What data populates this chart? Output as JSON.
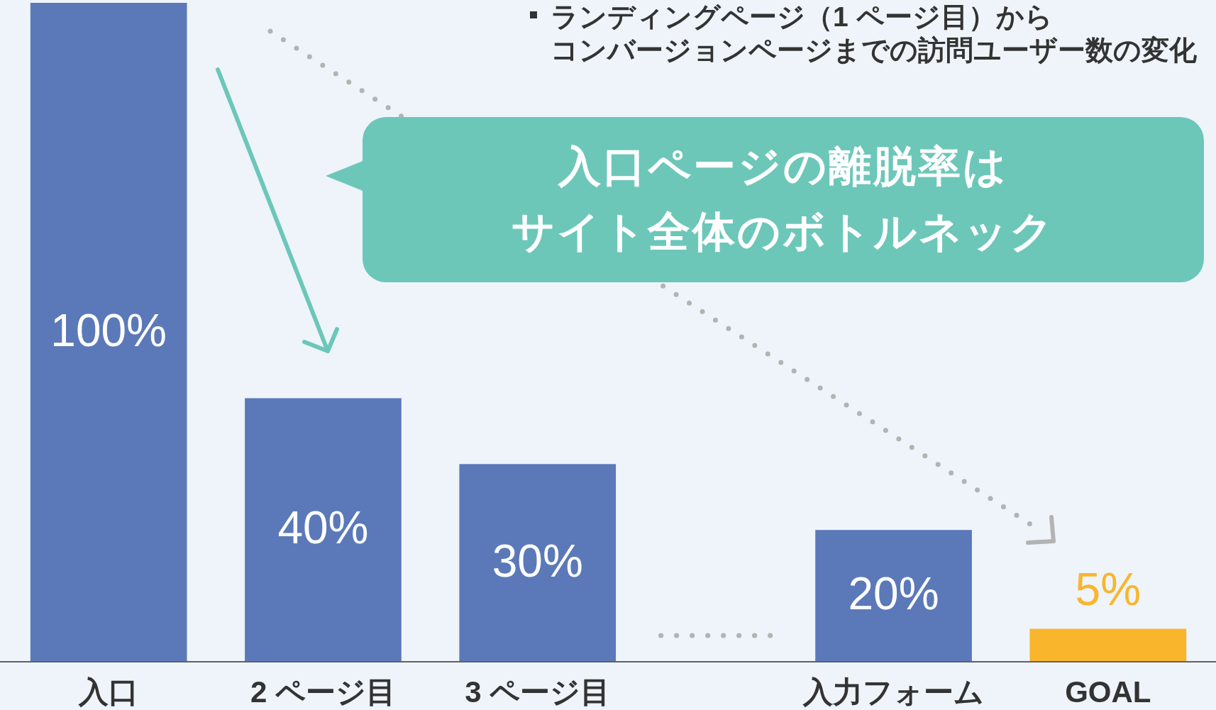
{
  "chart_data": {
    "type": "bar",
    "title": "ランディングページ（1 ページ目）からコンバージョンページまでの訪問ユーザー数の変化",
    "categories": [
      "入口",
      "2 ページ目",
      "3 ページ目",
      null,
      "入力フォーム",
      "GOAL"
    ],
    "values": [
      100,
      40,
      30,
      null,
      20,
      5
    ],
    "colors": [
      "#5b79b9",
      "#5b79b9",
      "#5b79b9",
      null,
      "#5b79b9",
      "#f9b52c"
    ],
    "value_labels": [
      "100%",
      "40%",
      "30%",
      null,
      "20%",
      "5%"
    ],
    "annotations": [
      "入口ページの離脱率はサイト全体のボトルネック"
    ]
  }
}
